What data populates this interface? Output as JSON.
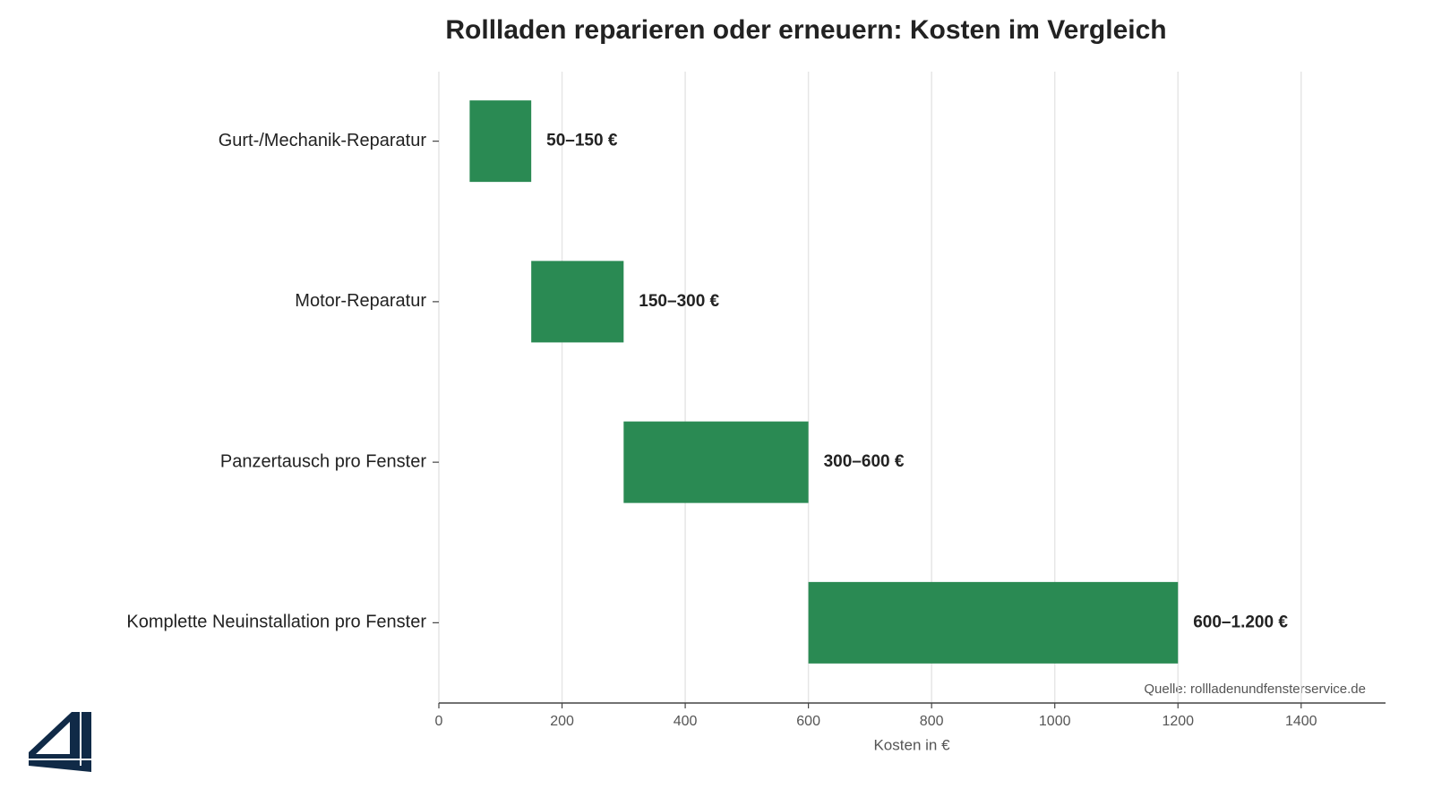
{
  "chart_data": {
    "type": "range-bar",
    "title": "Rollladen reparieren oder erneuern: Kosten im Vergleich",
    "categories": [
      "Gurt-/Mechanik-Reparatur",
      "Motor-Reparatur",
      "Panzertausch pro Fenster",
      "Komplette Neuinstallation pro Fenster"
    ],
    "low": [
      50,
      150,
      300,
      600
    ],
    "high": [
      150,
      300,
      600,
      1200
    ],
    "value_labels": [
      "50–150 €",
      "150–300 €",
      "300–600 €",
      "600–1.200 €"
    ],
    "color": "#2a8a53",
    "xlabel": "Kosten in €",
    "xlim": [
      0,
      1537
    ],
    "xticks": [
      0,
      200,
      400,
      600,
      800,
      1000,
      1200,
      1400
    ],
    "grid": true,
    "source": "Quelle: rollladenundfensterservice.de"
  }
}
